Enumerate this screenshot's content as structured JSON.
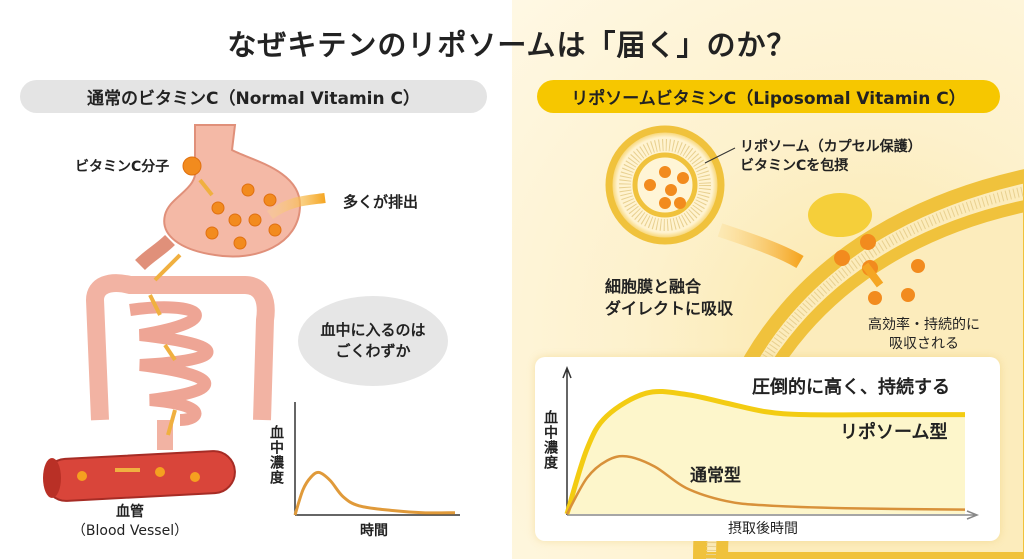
{
  "title": "なぜキテンのリポソームは「届く」のか？",
  "left": {
    "header": "通常のビタミンC（Normal Vitamin C）",
    "molecule_label": "ビタミンC分子",
    "excreted_label": "多くが排出",
    "bubble": [
      "血中に入るのは",
      "ごくわずか"
    ],
    "vessel_label": [
      "血管",
      "（Blood Vessel）"
    ],
    "chart_ylabel": "血中濃度",
    "chart_xlabel": "時間"
  },
  "right": {
    "header": "リポソームビタミンC（Liposomal Vitamin C）",
    "liposome_label": [
      "リポソーム（カプセル保護）",
      "ビタミンCを包摂"
    ],
    "fusion_label": [
      "細胞膜と融合",
      "ダイレクトに吸収"
    ],
    "absorb_label": [
      "高効率・持続的に",
      "吸収される"
    ]
  },
  "colors": {
    "accent": "#f6c700",
    "orange": "#f0901e",
    "pink": "#f4b9a6",
    "vessel": "#d9453a",
    "gray": "#e4e4e4"
  },
  "chart_data": [
    {
      "type": "line",
      "title": "",
      "xlabel": "時間",
      "ylabel": "血中濃度",
      "xlim": [
        0,
        10
      ],
      "ylim": [
        0,
        1
      ],
      "series": [
        {
          "name": "normal",
          "t": [
            0,
            0.5,
            1,
            1.5,
            2.2,
            3,
            4,
            6,
            8,
            10
          ],
          "values": [
            0,
            0.22,
            0.33,
            0.37,
            0.3,
            0.16,
            0.08,
            0.04,
            0.02,
            0.02
          ]
        }
      ]
    },
    {
      "type": "line",
      "title": "圧倒的に高く、持続する",
      "xlabel": "摂取後時間",
      "ylabel": "血中濃度",
      "xlim": [
        0,
        10
      ],
      "ylim": [
        0,
        1
      ],
      "series": [
        {
          "name": "リポソーム型",
          "t": [
            0,
            0.5,
            1,
            2,
            3,
            4,
            5,
            6,
            8,
            10
          ],
          "values": [
            0,
            0.45,
            0.68,
            0.84,
            0.83,
            0.77,
            0.71,
            0.69,
            0.69,
            0.69
          ]
        },
        {
          "name": "通常型",
          "t": [
            0,
            0.5,
            1,
            1.5,
            2.2,
            3,
            4,
            5,
            7,
            10
          ],
          "values": [
            0,
            0.25,
            0.37,
            0.4,
            0.33,
            0.18,
            0.09,
            0.06,
            0.04,
            0.03
          ]
        }
      ]
    }
  ]
}
